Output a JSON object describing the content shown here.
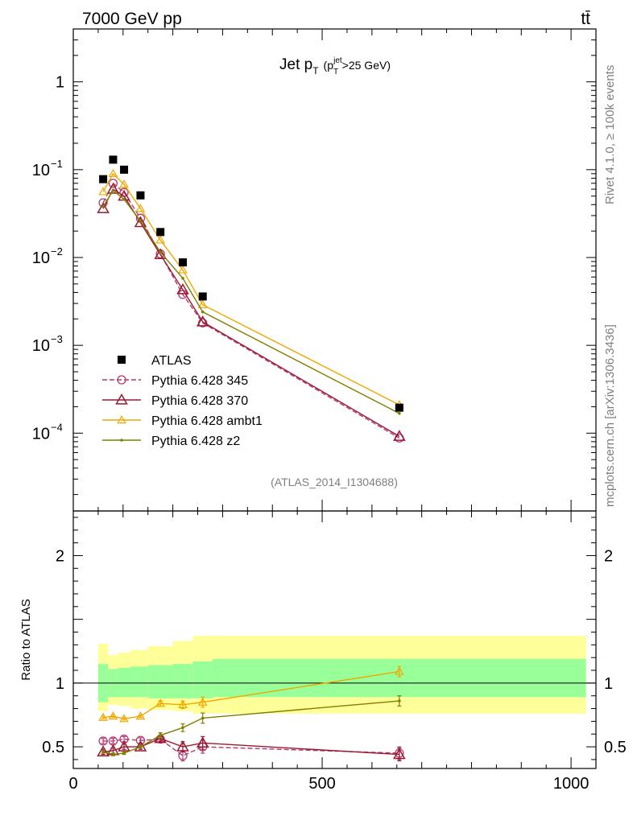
{
  "header": {
    "energy": "7000 GeV pp",
    "process": "tt̄"
  },
  "side_text": {
    "rivet": "Rivet 4.1.0, ≥ 100k events",
    "mcplots": "mcplots.cern.ch [arXiv:1306.3436]"
  },
  "chart_data": {
    "type": "line",
    "title_main": "Jet p",
    "title_sub": "T",
    "title_cut": "(p",
    "title_cut_sub": "T",
    "title_cut_sup": "jet",
    "title_cut_rest": ">25 GeV)",
    "analysis": "(ATLAS_2014_I1304688)",
    "ylabel_ratio": "Ratio to ATLAS",
    "xlim": [
      0,
      1050
    ],
    "ylim_main": [
      1.3e-05,
      4
    ],
    "ylim_ratio": [
      0.33,
      2.35
    ],
    "x_ticks": [
      {
        "v": 0,
        "label": "0"
      },
      {
        "v": 500,
        "label": "500"
      },
      {
        "v": 1000,
        "label": "1000"
      }
    ],
    "y_ticks_main": [
      {
        "v": 1,
        "base": "1",
        "exp": ""
      },
      {
        "v": 0.1,
        "base": "10",
        "exp": "−1"
      },
      {
        "v": 0.01,
        "base": "10",
        "exp": "−2"
      },
      {
        "v": 0.001,
        "base": "10",
        "exp": "−3"
      },
      {
        "v": 0.0001,
        "base": "10",
        "exp": "−4"
      }
    ],
    "y_ticks_ratio": [
      {
        "v": 0.5,
        "label": "0.5"
      },
      {
        "v": 1,
        "label": "1"
      },
      {
        "v": 2,
        "label": "2"
      }
    ],
    "bins": [
      [
        50,
        70
      ],
      [
        70,
        90
      ],
      [
        90,
        115
      ],
      [
        115,
        150
      ],
      [
        150,
        200
      ],
      [
        200,
        240
      ],
      [
        240,
        280
      ],
      [
        280,
        1030
      ]
    ],
    "data": {
      "name": "ATLAS",
      "x": [
        60,
        80,
        102,
        135,
        175,
        220,
        260,
        655
      ],
      "y": [
        0.078,
        0.13,
        0.1,
        0.051,
        0.0195,
        0.0088,
        0.0036,
        0.000195
      ]
    },
    "band_green": [
      [
        0.85,
        1.15
      ],
      [
        0.89,
        1.11
      ],
      [
        0.89,
        1.12
      ],
      [
        0.89,
        1.13
      ],
      [
        0.88,
        1.14
      ],
      [
        0.88,
        1.15
      ],
      [
        0.88,
        1.17
      ],
      [
        0.89,
        1.19
      ]
    ],
    "band_yellow": [
      [
        0.78,
        1.31
      ],
      [
        0.83,
        1.22
      ],
      [
        0.82,
        1.24
      ],
      [
        0.8,
        1.26
      ],
      [
        0.79,
        1.29
      ],
      [
        0.78,
        1.33
      ],
      [
        0.76,
        1.37
      ],
      [
        0.76,
        1.37
      ]
    ],
    "series": [
      {
        "name": "Pythia 6.428 345",
        "color": "#b2396e",
        "dash": "6,3",
        "marker": "circle",
        "x": [
          60,
          80,
          102,
          135,
          175,
          220,
          260,
          655
        ],
        "y": [
          0.042,
          0.07,
          0.055,
          0.028,
          0.011,
          0.0038,
          0.0018,
          8.8e-05
        ],
        "ratio": [
          0.545,
          0.545,
          0.56,
          0.55,
          0.56,
          0.43,
          0.5,
          0.45
        ],
        "ratio_err": [
          0.02,
          0.02,
          0.02,
          0.02,
          0.02,
          0.04,
          0.05,
          0.05
        ]
      },
      {
        "name": "Pythia 6.428 370",
        "color": "#9a1831",
        "dash": "",
        "marker": "triangle",
        "x": [
          60,
          80,
          102,
          135,
          175,
          220,
          260,
          655
        ],
        "y": [
          0.036,
          0.06,
          0.05,
          0.025,
          0.0108,
          0.0043,
          0.00185,
          9.2e-05
        ],
        "ratio": [
          0.46,
          0.47,
          0.5,
          0.5,
          0.565,
          0.5,
          0.53,
          0.44
        ],
        "ratio_err": [
          0.02,
          0.02,
          0.02,
          0.02,
          0.02,
          0.04,
          0.05,
          0.05
        ]
      },
      {
        "name": "Pythia 6.428 ambt1",
        "color": "#f0a800",
        "dash": "",
        "marker": "triangle-small",
        "x": [
          60,
          80,
          102,
          135,
          175,
          220,
          260,
          655
        ],
        "y": [
          0.056,
          0.09,
          0.068,
          0.036,
          0.0158,
          0.0072,
          0.0029,
          0.00021
        ],
        "ratio": [
          0.73,
          0.74,
          0.72,
          0.74,
          0.84,
          0.83,
          0.85,
          1.09
        ],
        "ratio_err": [
          0.01,
          0.01,
          0.01,
          0.01,
          0.02,
          0.03,
          0.04,
          0.04
        ]
      },
      {
        "name": "Pythia 6.428 z2",
        "color": "#7f7f00",
        "dash": "",
        "marker": "dot",
        "x": [
          60,
          80,
          102,
          135,
          175,
          220,
          260,
          655
        ],
        "y": [
          0.038,
          0.058,
          0.046,
          0.026,
          0.0115,
          0.0058,
          0.0024,
          0.000168
        ],
        "ratio": [
          0.46,
          0.44,
          0.45,
          0.5,
          0.59,
          0.65,
          0.725,
          0.86
        ],
        "ratio_err": [
          0.01,
          0.01,
          0.01,
          0.01,
          0.02,
          0.03,
          0.04,
          0.04
        ]
      }
    ]
  }
}
